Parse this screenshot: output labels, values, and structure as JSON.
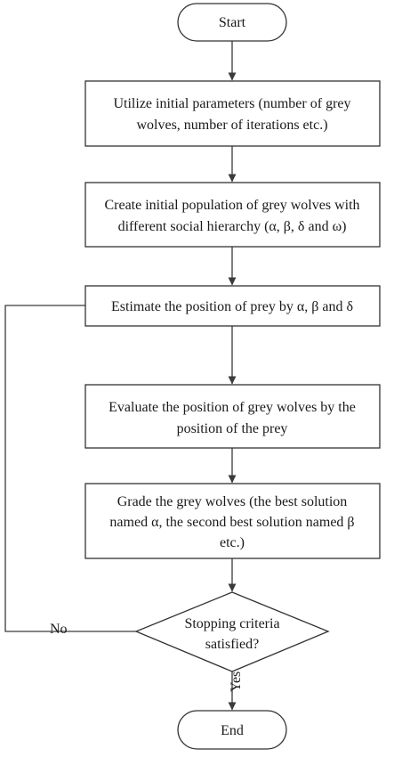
{
  "diagram": {
    "nodes": [
      {
        "id": "start",
        "shape": "terminal",
        "lines": [
          "Start"
        ]
      },
      {
        "id": "step1",
        "shape": "process",
        "lines": [
          "Utilize initial parameters (number of grey",
          "wolves, number of iterations etc.)"
        ]
      },
      {
        "id": "step2",
        "shape": "process",
        "lines": [
          "Create initial population of grey wolves with",
          "different social hierarchy (α, β, δ and ω)"
        ]
      },
      {
        "id": "step3",
        "shape": "process",
        "lines": [
          "Estimate the position of prey by α, β and δ"
        ]
      },
      {
        "id": "step4",
        "shape": "process",
        "lines": [
          "Evaluate the position of grey wolves by the",
          "position of the prey"
        ]
      },
      {
        "id": "step5",
        "shape": "process",
        "lines": [
          "Grade the grey wolves (the best solution",
          "named α, the second best solution named β",
          "etc.)"
        ]
      },
      {
        "id": "decision",
        "shape": "decision",
        "lines": [
          "Stopping criteria",
          "satisfied?"
        ]
      },
      {
        "id": "end",
        "shape": "terminal",
        "lines": [
          "End"
        ]
      }
    ],
    "edges": [
      {
        "from": "start",
        "to": "step1",
        "label": ""
      },
      {
        "from": "step1",
        "to": "step2",
        "label": ""
      },
      {
        "from": "step2",
        "to": "step3",
        "label": ""
      },
      {
        "from": "step3",
        "to": "step4",
        "label": ""
      },
      {
        "from": "step4",
        "to": "step5",
        "label": ""
      },
      {
        "from": "step5",
        "to": "decision",
        "label": ""
      },
      {
        "from": "decision",
        "to": "end",
        "label": "Yes"
      },
      {
        "from": "decision",
        "to": "step3",
        "label": "No"
      }
    ]
  }
}
